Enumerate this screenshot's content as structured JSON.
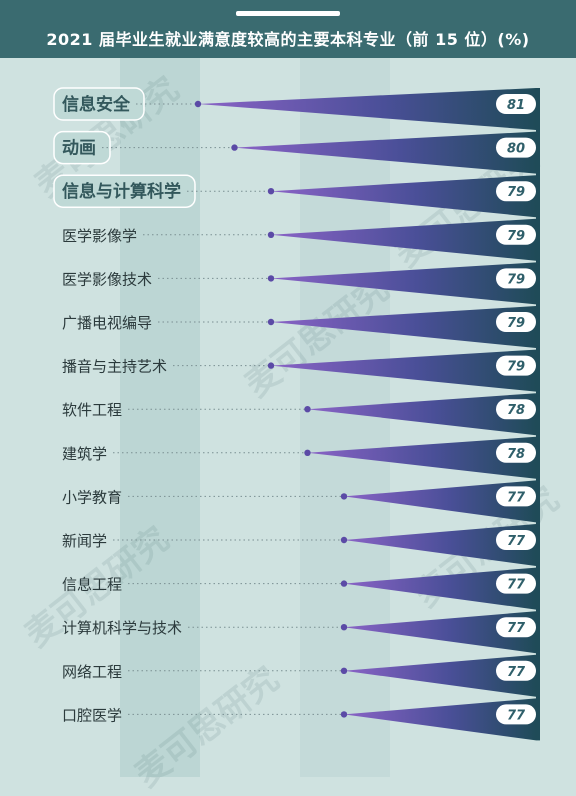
{
  "title": "2021 届毕业生就业满意度较高的主要本科专业（前 15 位）(%)",
  "watermark": "麦可思研究",
  "colors": {
    "header": "#3a6b70",
    "background": "#cfe2e0",
    "wedge_light": "#7e5cb8",
    "wedge_dark": "#1f4b58",
    "highlight_label_bg": "#bfd9d6",
    "badge_bg": "#ffffff",
    "badge_text": "#2f5f6a"
  },
  "chart_data": {
    "type": "bar",
    "title": "2021 届毕业生就业满意度较高的主要本科专业（前 15 位）(%)",
    "categories": [
      "信息安全",
      "动画",
      "信息与计算科学",
      "医学影像学",
      "医学影像技术",
      "广播电视编导",
      "播音与主持艺术",
      "软件工程",
      "建筑学",
      "小学教育",
      "新闻学",
      "信息工程",
      "计算机科学与技术",
      "网络工程",
      "口腔医学"
    ],
    "values": [
      81,
      80,
      79,
      79,
      79,
      79,
      79,
      78,
      78,
      77,
      77,
      77,
      77,
      77,
      77
    ],
    "value_labels": [
      "81",
      "80",
      "79",
      "79",
      "79",
      "79",
      "79",
      "78",
      "78",
      "77",
      "77",
      "77",
      "77",
      "77",
      "77"
    ],
    "highlighted": [
      "信息安全",
      "动画",
      "信息与计算科学"
    ],
    "orientation": "horizontal",
    "grid": false
  }
}
